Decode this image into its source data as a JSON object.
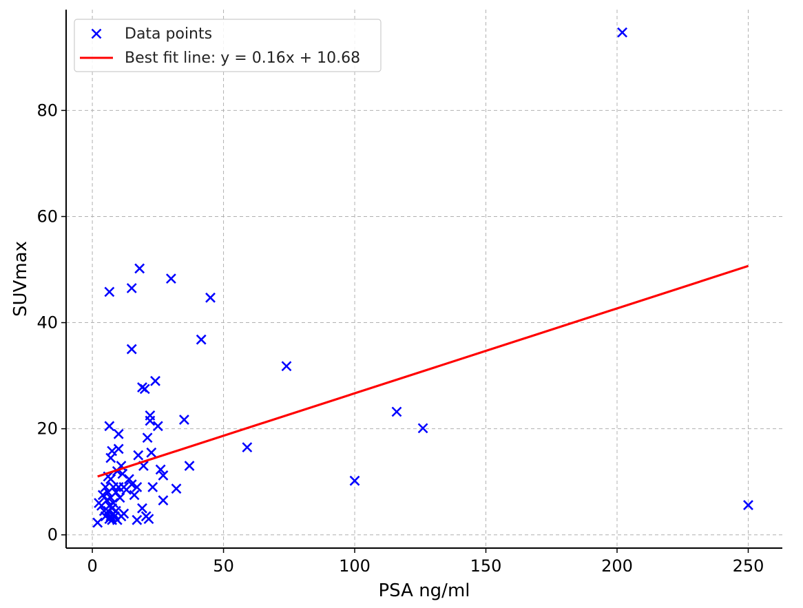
{
  "chart_data": {
    "type": "scatter",
    "xlabel": "PSA ng/ml",
    "ylabel": "SUVmax",
    "xlim": [
      -10,
      263
    ],
    "ylim": [
      -2.5,
      99
    ],
    "xticks": [
      0,
      50,
      100,
      150,
      200,
      250
    ],
    "yticks": [
      0,
      20,
      40,
      60,
      80
    ],
    "grid": true,
    "legend_position": "top-left",
    "colors": {
      "points": "#0000ff",
      "fit_line": "#ff0000"
    },
    "series": [
      {
        "name": "Data points",
        "marker": "x",
        "points": [
          [
            2,
            2.3
          ],
          [
            2.5,
            6
          ],
          [
            3.5,
            5.5
          ],
          [
            4,
            7.5
          ],
          [
            4.5,
            4.5
          ],
          [
            5,
            9
          ],
          [
            5,
            3.5
          ],
          [
            5.5,
            6.5
          ],
          [
            6,
            11
          ],
          [
            6,
            4.5
          ],
          [
            6,
            8
          ],
          [
            6.5,
            20.5
          ],
          [
            6.5,
            3
          ],
          [
            6.5,
            5.5
          ],
          [
            6.5,
            45.8
          ],
          [
            7,
            10.5
          ],
          [
            7,
            3.5
          ],
          [
            7,
            7
          ],
          [
            7,
            14.5
          ],
          [
            7.5,
            15.8
          ],
          [
            7.5,
            5
          ],
          [
            7.5,
            2.8
          ],
          [
            8,
            9
          ],
          [
            8,
            4
          ],
          [
            8,
            6
          ],
          [
            8.5,
            3.5
          ],
          [
            9,
            8
          ],
          [
            9,
            4.5
          ],
          [
            9.5,
            2.8
          ],
          [
            9.5,
            12
          ],
          [
            10,
            16.2
          ],
          [
            10,
            19
          ],
          [
            10,
            9
          ],
          [
            10.5,
            7
          ],
          [
            11,
            3.5
          ],
          [
            11,
            13
          ],
          [
            11.5,
            11.5
          ],
          [
            12,
            4
          ],
          [
            12,
            9
          ],
          [
            13,
            8.5
          ],
          [
            14,
            10.5
          ],
          [
            15,
            9.5
          ],
          [
            15,
            35
          ],
          [
            15,
            46.5
          ],
          [
            16,
            7.5
          ],
          [
            17,
            9
          ],
          [
            17,
            2.8
          ],
          [
            17.5,
            15
          ],
          [
            18,
            50.2
          ],
          [
            19,
            27.8
          ],
          [
            19,
            5
          ],
          [
            19.5,
            13
          ],
          [
            20,
            27.5
          ],
          [
            20.5,
            3.5
          ],
          [
            21,
            18.3
          ],
          [
            21.5,
            3
          ],
          [
            22,
            22.5
          ],
          [
            22,
            21.5
          ],
          [
            22.5,
            15.5
          ],
          [
            23,
            9
          ],
          [
            24,
            29
          ],
          [
            25,
            20.5
          ],
          [
            26,
            12.3
          ],
          [
            27,
            6.5
          ],
          [
            27,
            11.2
          ],
          [
            30,
            48.3
          ],
          [
            32,
            8.7
          ],
          [
            35,
            21.7
          ],
          [
            37,
            13
          ],
          [
            41.5,
            36.8
          ],
          [
            45,
            44.7
          ],
          [
            59,
            16.5
          ],
          [
            74,
            31.8
          ],
          [
            100,
            10.2
          ],
          [
            116,
            23.2
          ],
          [
            126,
            20.1
          ],
          [
            202,
            94.7
          ],
          [
            250,
            5.6
          ]
        ]
      },
      {
        "name": "Best fit line: y = 0.16x + 10.68",
        "type": "line",
        "slope": 0.16,
        "intercept": 10.68,
        "x_range": [
          2,
          250
        ]
      }
    ]
  }
}
